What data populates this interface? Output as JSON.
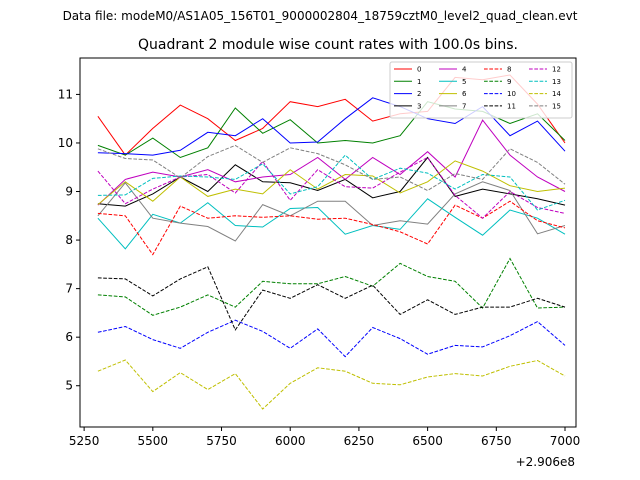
{
  "suptitle": "Data file: modeM0/AS1A05_156T01_9000002804_18759cztM0_level2_quad_clean.evt",
  "chart_data": {
    "type": "line",
    "title": "Quadrant 2 module wise count rates with 100.0s bins.",
    "xlabel": "",
    "ylabel": "",
    "x_offset_label": "+2.906e8",
    "xlim": [
      5235,
      7040
    ],
    "ylim": [
      4.15,
      11.75
    ],
    "xticks": [
      5250,
      5500,
      5750,
      6000,
      6250,
      6500,
      6750,
      7000
    ],
    "yticks": [
      5,
      6,
      7,
      8,
      9,
      10,
      11
    ],
    "legend_position": "top-right",
    "x": [
      5300,
      5400,
      5500,
      5600,
      5700,
      5800,
      5900,
      6000,
      6100,
      6200,
      6300,
      6400,
      6500,
      6600,
      6700,
      6800,
      6900,
      7000
    ],
    "series": [
      {
        "name": "0",
        "color": "#ff0000",
        "dash": "solid",
        "values": [
          10.55,
          9.75,
          10.3,
          10.78,
          10.5,
          10.05,
          10.3,
          10.85,
          10.75,
          10.9,
          10.45,
          10.6,
          10.65,
          11.35,
          11.3,
          11.4,
          10.8,
          10.0
        ]
      },
      {
        "name": "1",
        "color": "#008000",
        "dash": "solid",
        "values": [
          9.95,
          9.75,
          10.1,
          9.7,
          9.9,
          10.72,
          10.2,
          10.48,
          10.0,
          10.05,
          10.0,
          10.15,
          10.85,
          10.7,
          10.65,
          10.4,
          10.6,
          10.05
        ]
      },
      {
        "name": "2",
        "color": "#0000ff",
        "dash": "solid",
        "values": [
          9.8,
          9.78,
          9.75,
          9.85,
          10.22,
          10.15,
          10.5,
          10.0,
          10.02,
          10.5,
          10.93,
          10.75,
          10.5,
          10.4,
          10.75,
          10.15,
          10.45,
          9.83
        ]
      },
      {
        "name": "3",
        "color": "#000000",
        "dash": "solid",
        "values": [
          8.75,
          8.7,
          8.95,
          9.3,
          9.0,
          9.55,
          9.2,
          9.18,
          9.02,
          9.25,
          8.87,
          9.0,
          9.7,
          8.9,
          9.05,
          8.95,
          8.85,
          8.72
        ]
      },
      {
        "name": "4",
        "color": "#bf00bf",
        "dash": "solid",
        "values": [
          8.72,
          9.25,
          9.4,
          9.3,
          9.45,
          9.2,
          9.3,
          9.35,
          9.7,
          9.25,
          9.7,
          9.35,
          9.82,
          9.3,
          10.47,
          9.75,
          9.3,
          9.0
        ]
      },
      {
        "name": "5",
        "color": "#00bfbf",
        "dash": "solid",
        "values": [
          8.45,
          7.82,
          8.53,
          8.35,
          8.77,
          8.3,
          8.27,
          8.65,
          8.67,
          8.12,
          8.3,
          8.22,
          8.85,
          8.47,
          8.1,
          8.62,
          8.45,
          8.12
        ]
      },
      {
        "name": "6",
        "color": "#bfbf00",
        "dash": "solid",
        "values": [
          8.73,
          9.2,
          8.8,
          9.3,
          8.9,
          9.05,
          8.95,
          9.45,
          9.05,
          9.35,
          9.32,
          8.97,
          9.2,
          9.63,
          9.42,
          9.12,
          9.0,
          9.07
        ]
      },
      {
        "name": "7",
        "color": "#808080",
        "dash": "solid",
        "values": [
          8.5,
          9.18,
          8.45,
          8.35,
          8.28,
          7.98,
          8.73,
          8.5,
          8.8,
          8.8,
          8.3,
          8.4,
          8.33,
          8.95,
          9.2,
          9.02,
          8.13,
          8.3
        ]
      },
      {
        "name": "8",
        "color": "#ff0000",
        "dash": "dashed",
        "values": [
          8.55,
          8.5,
          7.7,
          8.7,
          8.45,
          8.5,
          8.47,
          8.5,
          8.43,
          8.45,
          8.32,
          8.17,
          7.92,
          8.72,
          8.45,
          8.8,
          8.4,
          8.25
        ]
      },
      {
        "name": "9",
        "color": "#008000",
        "dash": "dashed",
        "values": [
          6.87,
          6.83,
          6.45,
          6.62,
          6.87,
          6.62,
          7.15,
          7.1,
          7.1,
          7.25,
          7.05,
          7.52,
          7.25,
          7.15,
          6.6,
          7.62,
          6.6,
          6.62
        ]
      },
      {
        "name": "10",
        "color": "#0000ff",
        "dash": "dashed",
        "values": [
          6.1,
          6.22,
          5.95,
          5.77,
          6.1,
          6.35,
          6.12,
          5.77,
          6.17,
          5.6,
          6.2,
          5.97,
          5.65,
          5.83,
          5.8,
          6.03,
          6.32,
          5.83
        ]
      },
      {
        "name": "11",
        "color": "#000000",
        "dash": "dashed",
        "values": [
          7.22,
          7.2,
          6.85,
          7.2,
          7.45,
          6.15,
          6.97,
          6.8,
          7.08,
          6.8,
          7.07,
          6.47,
          6.77,
          6.47,
          6.62,
          6.62,
          6.8,
          6.62
        ]
      },
      {
        "name": "12",
        "color": "#bf00bf",
        "dash": "dashed",
        "values": [
          9.42,
          8.75,
          9.05,
          9.3,
          9.35,
          8.97,
          9.62,
          8.82,
          9.45,
          9.1,
          9.07,
          9.4,
          9.7,
          8.92,
          8.45,
          9.0,
          8.67,
          8.55
        ]
      },
      {
        "name": "13",
        "color": "#00bfbf",
        "dash": "dashed",
        "values": [
          8.92,
          8.93,
          9.27,
          9.32,
          9.3,
          9.25,
          9.57,
          8.95,
          9.1,
          9.75,
          9.25,
          9.48,
          9.38,
          9.05,
          9.35,
          9.3,
          8.62,
          8.82
        ]
      },
      {
        "name": "14",
        "color": "#bfbf00",
        "dash": "dashed",
        "values": [
          5.3,
          5.53,
          4.88,
          5.27,
          4.92,
          5.25,
          4.52,
          5.05,
          5.37,
          5.3,
          5.05,
          5.02,
          5.18,
          5.25,
          5.2,
          5.4,
          5.52,
          5.2
        ]
      },
      {
        "name": "15",
        "color": "#808080",
        "dash": "dashed",
        "values": [
          9.88,
          9.68,
          9.65,
          9.28,
          9.72,
          9.95,
          9.6,
          9.9,
          9.78,
          9.55,
          9.25,
          9.3,
          9.02,
          9.37,
          9.25,
          9.88,
          9.6,
          9.15
        ]
      }
    ]
  }
}
